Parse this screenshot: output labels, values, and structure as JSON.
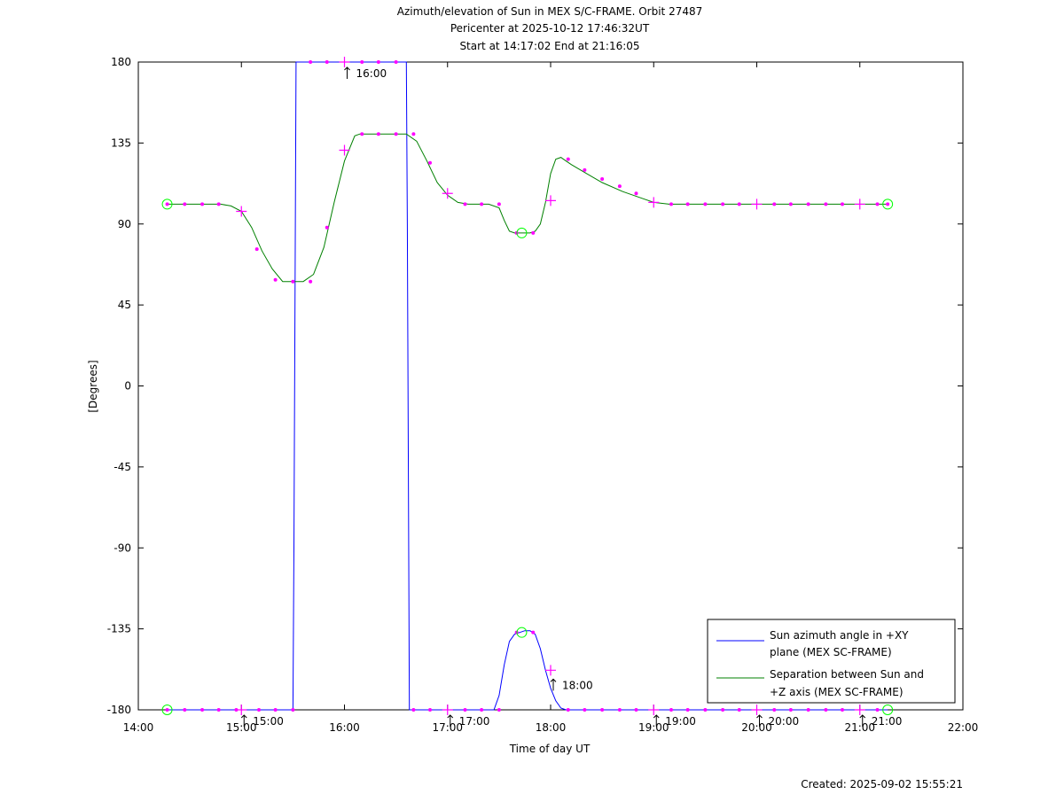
{
  "chart_data": {
    "type": "line",
    "title_lines": [
      "Azimuth/elevation of Sun in MEX S/C-FRAME.  Orbit 27487",
      "Pericenter at 2025-10-12 17:46:32UT",
      "Start at 14:17:02 End at 21:16:05"
    ],
    "xlabel": "Time of day UT",
    "ylabel": "[Degrees]",
    "xlim": [
      14.0,
      22.0
    ],
    "ylim": [
      -180,
      180
    ],
    "x_ticks": [
      {
        "v": 14,
        "label": "14:00"
      },
      {
        "v": 15,
        "label": "15:00"
      },
      {
        "v": 16,
        "label": "16:00"
      },
      {
        "v": 17,
        "label": "17:00"
      },
      {
        "v": 18,
        "label": "18:00"
      },
      {
        "v": 19,
        "label": "19:00"
      },
      {
        "v": 20,
        "label": "20:00"
      },
      {
        "v": 21,
        "label": "21:00"
      },
      {
        "v": 22,
        "label": "22:00"
      }
    ],
    "y_ticks": [
      {
        "v": 180,
        "label": "180"
      },
      {
        "v": 135,
        "label": "135"
      },
      {
        "v": 90,
        "label": "90"
      },
      {
        "v": 45,
        "label": "45"
      },
      {
        "v": 0,
        "label": "0"
      },
      {
        "v": -45,
        "label": "-45"
      },
      {
        "v": -90,
        "label": "-90"
      },
      {
        "v": -135,
        "label": "-135"
      },
      {
        "v": -180,
        "label": "-180"
      }
    ],
    "legend_position": "bottom-right",
    "series": [
      {
        "name_lines": [
          "Sun azimuth angle in +XY",
          "plane (MEX SC-FRAME)"
        ],
        "color": "#0000ff",
        "x": [
          14.28,
          15.5,
          15.51,
          15.53,
          16.6,
          16.61,
          16.63,
          17.45,
          17.5,
          17.55,
          17.6,
          17.65,
          17.7,
          17.75,
          17.8,
          17.85,
          17.9,
          17.95,
          18.0,
          18.05,
          18.1,
          18.15,
          21.27
        ],
        "y": [
          -180,
          -180,
          -90,
          180,
          180,
          90,
          -180,
          -180,
          -172,
          -155,
          -142,
          -138,
          -137,
          -136,
          -136,
          -138,
          -146,
          -158,
          -168,
          -175,
          -179,
          -180,
          -180
        ]
      },
      {
        "name_lines": [
          "Separation between Sun and",
          "+Z axis (MEX SC-FRAME)"
        ],
        "color": "#008000",
        "x": [
          14.28,
          14.6,
          14.8,
          14.9,
          15.0,
          15.1,
          15.2,
          15.3,
          15.4,
          15.5,
          15.6,
          15.7,
          15.8,
          15.9,
          16.0,
          16.1,
          16.15,
          16.3,
          16.5,
          16.6,
          16.7,
          16.8,
          16.9,
          17.0,
          17.1,
          17.2,
          17.3,
          17.4,
          17.5,
          17.55,
          17.6,
          17.65,
          17.7,
          17.75,
          17.8,
          17.85,
          17.9,
          17.95,
          18.0,
          18.05,
          18.1,
          18.15,
          18.2,
          18.35,
          18.5,
          18.7,
          18.9,
          19.0,
          19.15,
          19.5,
          20.0,
          21.27
        ],
        "y": [
          101,
          101,
          101,
          100,
          97,
          88,
          75,
          65,
          58,
          58,
          58,
          62,
          77,
          102,
          125,
          139,
          140,
          140,
          140,
          140,
          136,
          125,
          113,
          106,
          102,
          101,
          101,
          101,
          99,
          92,
          86,
          85,
          85,
          85,
          85,
          86,
          90,
          102,
          118,
          126,
          127,
          125,
          123,
          118,
          113,
          108,
          104,
          102,
          101,
          101,
          101,
          101
        ]
      }
    ],
    "magenta_dots": [
      {
        "x": 14.28,
        "y": 101
      },
      {
        "x": 14.45,
        "y": 101
      },
      {
        "x": 14.62,
        "y": 101
      },
      {
        "x": 14.78,
        "y": 101
      },
      {
        "x": 15.15,
        "y": 76
      },
      {
        "x": 15.33,
        "y": 59
      },
      {
        "x": 15.5,
        "y": 58
      },
      {
        "x": 15.67,
        "y": 58
      },
      {
        "x": 15.83,
        "y": 88
      },
      {
        "x": 16.17,
        "y": 140
      },
      {
        "x": 16.33,
        "y": 140
      },
      {
        "x": 16.5,
        "y": 140
      },
      {
        "x": 16.67,
        "y": 140
      },
      {
        "x": 16.83,
        "y": 124
      },
      {
        "x": 17.17,
        "y": 101
      },
      {
        "x": 17.33,
        "y": 101
      },
      {
        "x": 17.5,
        "y": 101
      },
      {
        "x": 17.67,
        "y": 85
      },
      {
        "x": 17.83,
        "y": 85
      },
      {
        "x": 18.17,
        "y": 126
      },
      {
        "x": 18.33,
        "y": 120
      },
      {
        "x": 18.5,
        "y": 115
      },
      {
        "x": 18.67,
        "y": 111
      },
      {
        "x": 18.83,
        "y": 107
      },
      {
        "x": 19.17,
        "y": 101
      },
      {
        "x": 19.33,
        "y": 101
      },
      {
        "x": 19.5,
        "y": 101
      },
      {
        "x": 19.67,
        "y": 101
      },
      {
        "x": 19.83,
        "y": 101
      },
      {
        "x": 20.17,
        "y": 101
      },
      {
        "x": 20.33,
        "y": 101
      },
      {
        "x": 20.5,
        "y": 101
      },
      {
        "x": 20.67,
        "y": 101
      },
      {
        "x": 20.83,
        "y": 101
      },
      {
        "x": 21.17,
        "y": 101
      },
      {
        "x": 21.27,
        "y": 101
      },
      {
        "x": 15.67,
        "y": 180
      },
      {
        "x": 15.83,
        "y": 180
      },
      {
        "x": 16.17,
        "y": 180
      },
      {
        "x": 16.33,
        "y": 180
      },
      {
        "x": 16.5,
        "y": 180
      },
      {
        "x": 14.28,
        "y": -180
      },
      {
        "x": 14.45,
        "y": -180
      },
      {
        "x": 14.62,
        "y": -180
      },
      {
        "x": 14.78,
        "y": -180
      },
      {
        "x": 14.95,
        "y": -180
      },
      {
        "x": 15.17,
        "y": -180
      },
      {
        "x": 15.33,
        "y": -180
      },
      {
        "x": 15.5,
        "y": -180
      },
      {
        "x": 16.67,
        "y": -180
      },
      {
        "x": 16.83,
        "y": -180
      },
      {
        "x": 17.17,
        "y": -180
      },
      {
        "x": 17.33,
        "y": -180
      },
      {
        "x": 17.5,
        "y": -180
      },
      {
        "x": 17.67,
        "y": -137
      },
      {
        "x": 17.83,
        "y": -137
      },
      {
        "x": 18.17,
        "y": -180
      },
      {
        "x": 18.33,
        "y": -180
      },
      {
        "x": 18.5,
        "y": -180
      },
      {
        "x": 18.67,
        "y": -180
      },
      {
        "x": 18.83,
        "y": -180
      },
      {
        "x": 19.17,
        "y": -180
      },
      {
        "x": 19.33,
        "y": -180
      },
      {
        "x": 19.5,
        "y": -180
      },
      {
        "x": 19.67,
        "y": -180
      },
      {
        "x": 19.83,
        "y": -180
      },
      {
        "x": 20.17,
        "y": -180
      },
      {
        "x": 20.33,
        "y": -180
      },
      {
        "x": 20.5,
        "y": -180
      },
      {
        "x": 20.67,
        "y": -180
      },
      {
        "x": 20.83,
        "y": -180
      },
      {
        "x": 21.17,
        "y": -180
      }
    ],
    "hour_crosses": [
      {
        "x": 15.0,
        "y": 97
      },
      {
        "x": 16.0,
        "y": 131
      },
      {
        "x": 17.0,
        "y": 107
      },
      {
        "x": 18.0,
        "y": 103
      },
      {
        "x": 19.0,
        "y": 102
      },
      {
        "x": 20.0,
        "y": 101
      },
      {
        "x": 21.0,
        "y": 101
      },
      {
        "x": 16.0,
        "y": 180
      },
      {
        "x": 15.0,
        "y": -180
      },
      {
        "x": 17.0,
        "y": -180
      },
      {
        "x": 18.0,
        "y": -158
      },
      {
        "x": 19.0,
        "y": -180
      },
      {
        "x": 20.0,
        "y": -180
      },
      {
        "x": 21.0,
        "y": -180
      }
    ],
    "start_end_circles": [
      {
        "x": 14.28,
        "y": 101
      },
      {
        "x": 21.27,
        "y": 101
      },
      {
        "x": 17.72,
        "y": 85
      },
      {
        "x": 14.28,
        "y": -180
      },
      {
        "x": 21.27,
        "y": -180
      },
      {
        "x": 17.72,
        "y": -137
      }
    ],
    "hour_annotations": [
      {
        "x": 16.0,
        "y": 180,
        "label": "16:00"
      },
      {
        "x": 15.0,
        "y": -180,
        "label": "15:00"
      },
      {
        "x": 17.0,
        "y": -180,
        "label": "17:00"
      },
      {
        "x": 18.0,
        "y": -160,
        "label": "18:00"
      },
      {
        "x": 19.0,
        "y": -180,
        "label": "19:00"
      },
      {
        "x": 20.0,
        "y": -180,
        "label": "20:00"
      },
      {
        "x": 21.0,
        "y": -180,
        "label": "21:00"
      }
    ],
    "dot_color": "#ff00ff",
    "circle_color": "#00ff00"
  },
  "footer": {
    "created": "Created: 2025-09-02 15:55:21"
  }
}
